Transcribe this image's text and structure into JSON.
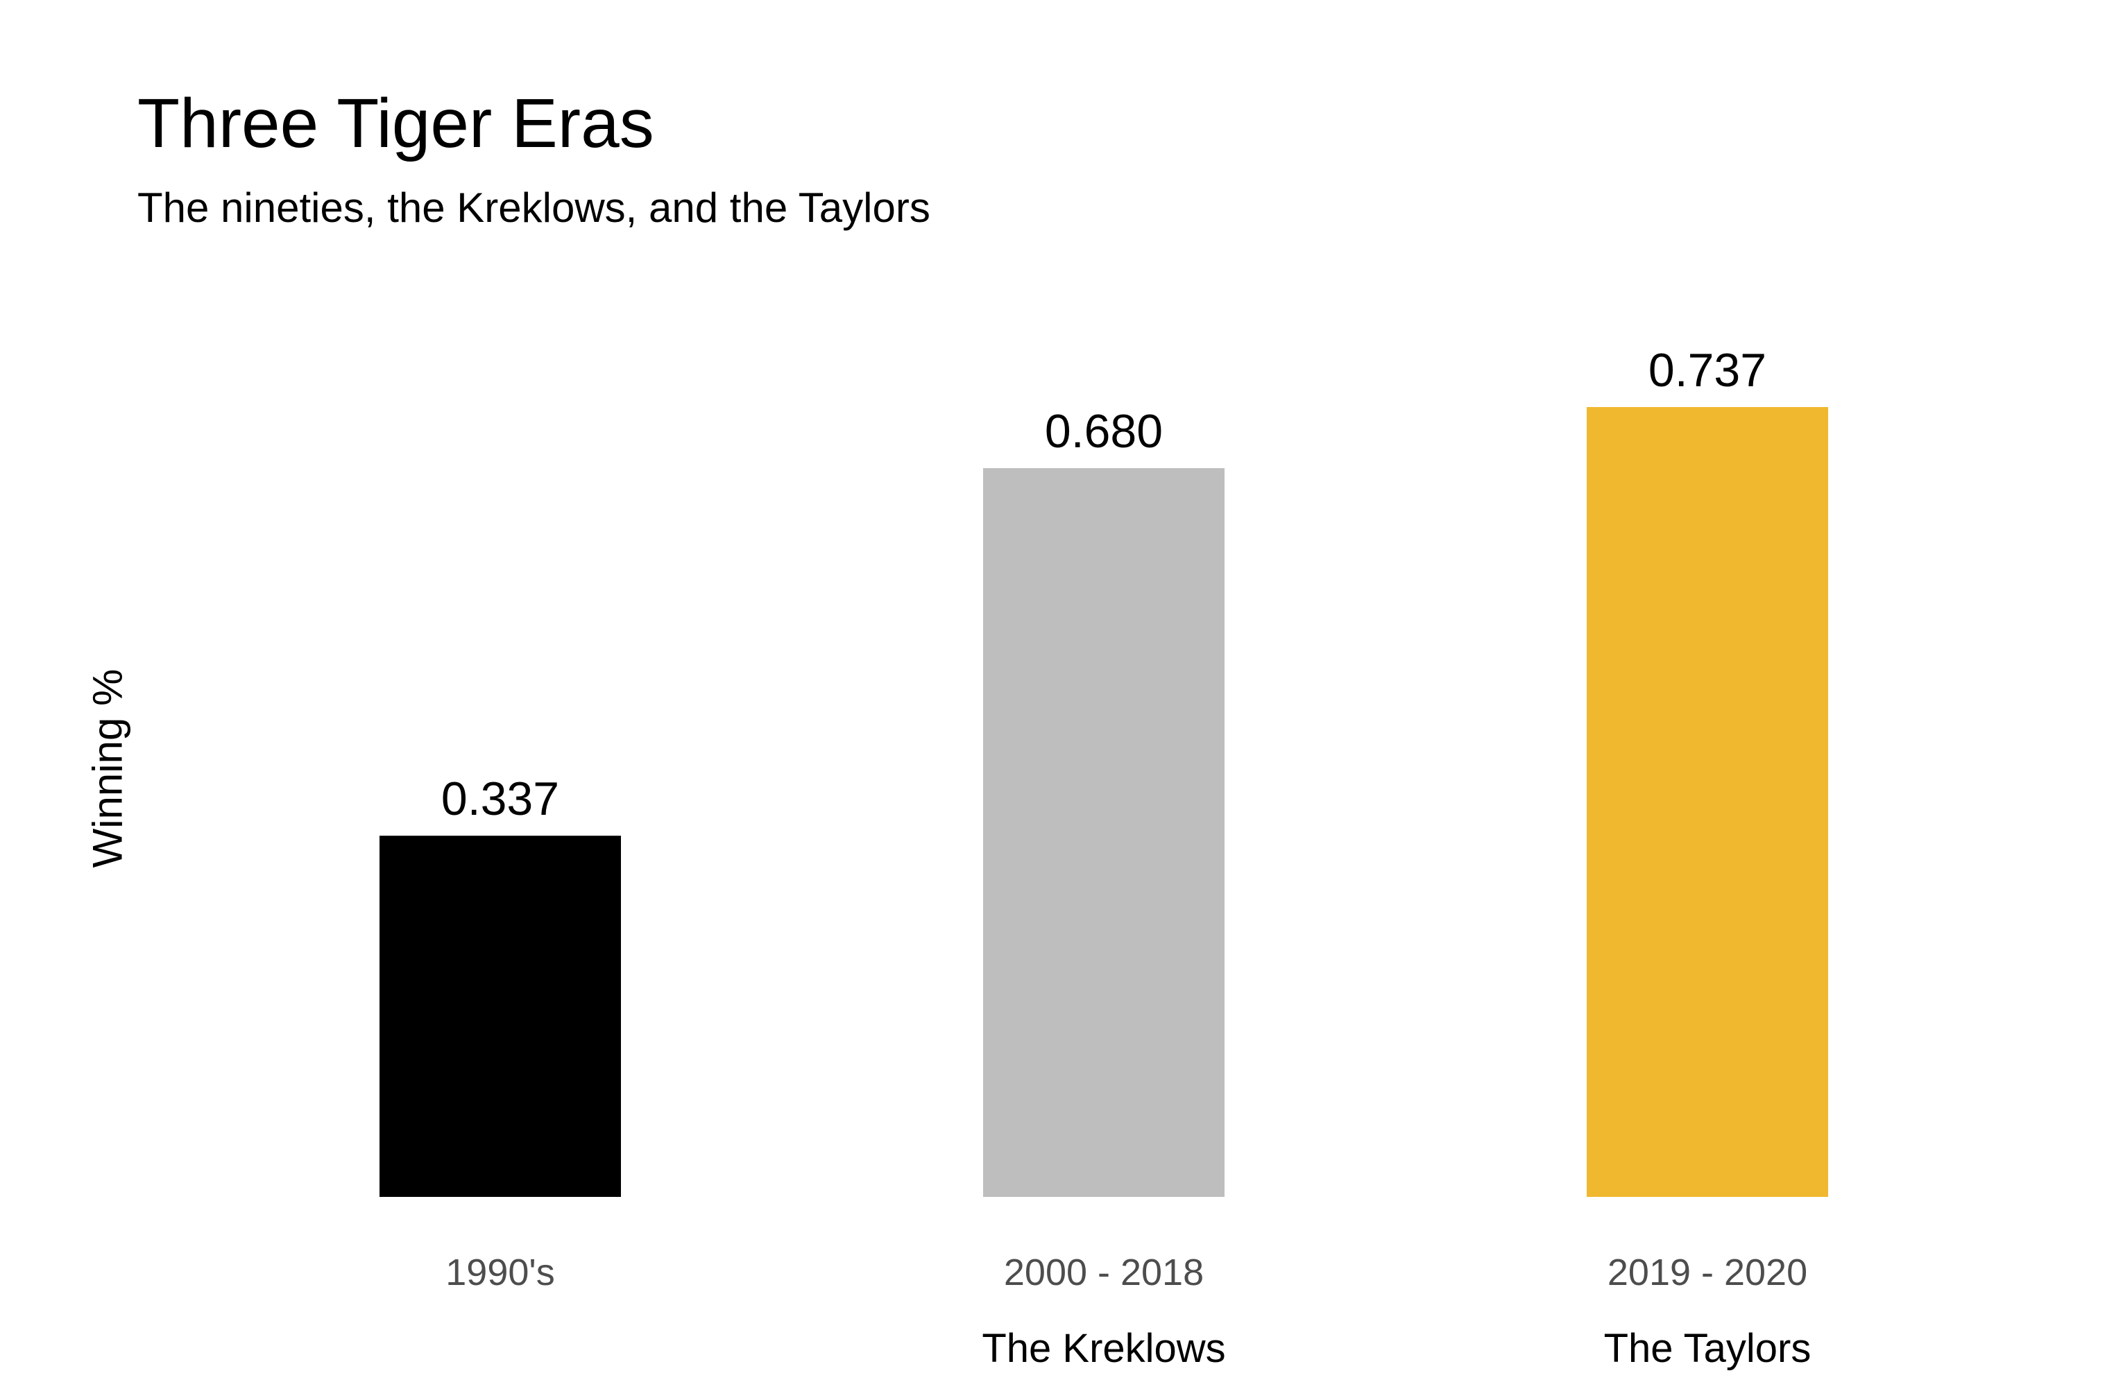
{
  "chart_data": {
    "type": "bar",
    "title": "Three Tiger Eras",
    "subtitle": "The nineties, the Kreklows, and the Taylors",
    "xlabel": "",
    "ylabel": "Winning %",
    "categories": [
      "1990's",
      "2000 - 2018",
      "2019 - 2020"
    ],
    "values": [
      0.337,
      0.68,
      0.737
    ],
    "value_labels": [
      "0.337",
      "0.680",
      "0.737"
    ],
    "era_labels": [
      "",
      "The Kreklows",
      "The Taylors"
    ],
    "colors": [
      "#000000",
      "#bebebe",
      "#f0b82f"
    ],
    "ylim": [
      0,
      0.737
    ],
    "grid": false,
    "legend": "none"
  }
}
